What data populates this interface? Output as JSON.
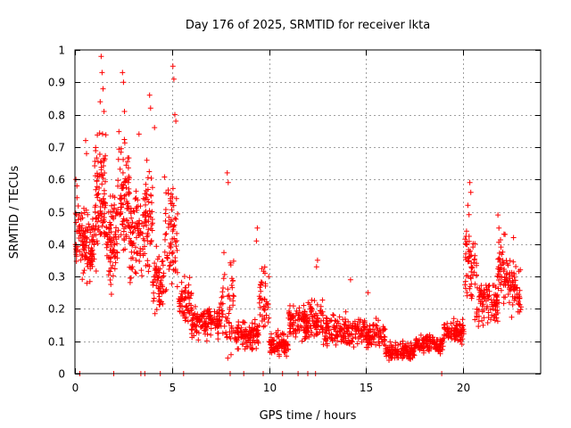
{
  "chart_data": {
    "type": "scatter",
    "title": "Day 176 of 2025, SRMTID for receiver lkta",
    "xlabel": "GPS time / hours",
    "ylabel": "SRMTID / TECUs",
    "xlim": [
      0,
      24
    ],
    "ylim": [
      0,
      1
    ],
    "xticks": [
      0,
      5,
      10,
      15,
      20
    ],
    "xtick_labels": [
      "0",
      "5",
      "10",
      "15",
      "20"
    ],
    "yticks": [
      0,
      0.1,
      0.2,
      0.3,
      0.4,
      0.5,
      0.6,
      0.7,
      0.8,
      0.9,
      1
    ],
    "ytick_labels": [
      "0",
      "0.1",
      "0.2",
      "0.3",
      "0.4",
      "0.5",
      "0.6",
      "0.7",
      "0.8",
      "0.9",
      "1"
    ],
    "grid": true,
    "legend": "none",
    "marker": "+",
    "color": "#ff0000",
    "series": [
      {
        "name": "SRMTID",
        "profile": [
          {
            "x_range": [
              0.0,
              0.5
            ],
            "y_center": 0.42,
            "y_spread": 0.16,
            "count": 60
          },
          {
            "x_range": [
              0.5,
              1.0
            ],
            "y_center": 0.4,
            "y_spread": 0.14,
            "count": 70
          },
          {
            "x_range": [
              1.0,
              1.6
            ],
            "y_center": 0.55,
            "y_spread": 0.25,
            "count": 90
          },
          {
            "x_range": [
              1.6,
              2.2
            ],
            "y_center": 0.42,
            "y_spread": 0.2,
            "count": 80
          },
          {
            "x_range": [
              2.2,
              2.8
            ],
            "y_center": 0.55,
            "y_spread": 0.22,
            "count": 80
          },
          {
            "x_range": [
              2.8,
              3.5
            ],
            "y_center": 0.4,
            "y_spread": 0.2,
            "count": 80
          },
          {
            "x_range": [
              3.5,
              4.0
            ],
            "y_center": 0.48,
            "y_spread": 0.22,
            "count": 60
          },
          {
            "x_range": [
              4.0,
              4.6
            ],
            "y_center": 0.28,
            "y_spread": 0.14,
            "count": 60
          },
          {
            "x_range": [
              4.6,
              5.3
            ],
            "y_center": 0.45,
            "y_spread": 0.3,
            "count": 70
          },
          {
            "x_range": [
              5.3,
              6.0
            ],
            "y_center": 0.22,
            "y_spread": 0.1,
            "count": 60
          },
          {
            "x_range": [
              6.0,
              7.5
            ],
            "y_center": 0.16,
            "y_spread": 0.07,
            "count": 130
          },
          {
            "x_range": [
              7.5,
              8.2
            ],
            "y_center": 0.22,
            "y_spread": 0.2,
            "count": 55
          },
          {
            "x_range": [
              8.2,
              9.5
            ],
            "y_center": 0.12,
            "y_spread": 0.06,
            "count": 110
          },
          {
            "x_range": [
              9.5,
              10.0
            ],
            "y_center": 0.22,
            "y_spread": 0.14,
            "count": 40
          },
          {
            "x_range": [
              10.0,
              11.0
            ],
            "y_center": 0.09,
            "y_spread": 0.05,
            "count": 90
          },
          {
            "x_range": [
              11.0,
              12.0
            ],
            "y_center": 0.15,
            "y_spread": 0.08,
            "count": 90
          },
          {
            "x_range": [
              12.0,
              12.8
            ],
            "y_center": 0.16,
            "y_spread": 0.1,
            "count": 70
          },
          {
            "x_range": [
              12.8,
              15.0
            ],
            "y_center": 0.13,
            "y_spread": 0.07,
            "count": 170
          },
          {
            "x_range": [
              15.0,
              16.0
            ],
            "y_center": 0.12,
            "y_spread": 0.06,
            "count": 80
          },
          {
            "x_range": [
              16.0,
              17.5
            ],
            "y_center": 0.07,
            "y_spread": 0.04,
            "count": 130
          },
          {
            "x_range": [
              17.5,
              19.0
            ],
            "y_center": 0.09,
            "y_spread": 0.04,
            "count": 120
          },
          {
            "x_range": [
              19.0,
              20.1
            ],
            "y_center": 0.13,
            "y_spread": 0.05,
            "count": 90
          },
          {
            "x_range": [
              20.1,
              20.7
            ],
            "y_center": 0.34,
            "y_spread": 0.2,
            "count": 60
          },
          {
            "x_range": [
              20.7,
              21.8
            ],
            "y_center": 0.22,
            "y_spread": 0.1,
            "count": 100
          },
          {
            "x_range": [
              21.8,
              22.3
            ],
            "y_center": 0.32,
            "y_spread": 0.14,
            "count": 50
          },
          {
            "x_range": [
              22.3,
              23.0
            ],
            "y_center": 0.26,
            "y_spread": 0.12,
            "count": 60
          }
        ],
        "highlights": [
          {
            "x": 1.35,
            "y": 0.98
          },
          {
            "x": 1.4,
            "y": 0.93
          },
          {
            "x": 1.45,
            "y": 0.88
          },
          {
            "x": 1.3,
            "y": 0.84
          },
          {
            "x": 1.5,
            "y": 0.81
          },
          {
            "x": 2.45,
            "y": 0.93
          },
          {
            "x": 2.5,
            "y": 0.9
          },
          {
            "x": 2.55,
            "y": 0.81
          },
          {
            "x": 3.85,
            "y": 0.86
          },
          {
            "x": 3.9,
            "y": 0.82
          },
          {
            "x": 5.05,
            "y": 0.95
          },
          {
            "x": 5.1,
            "y": 0.91
          },
          {
            "x": 5.15,
            "y": 0.8
          },
          {
            "x": 5.2,
            "y": 0.78
          },
          {
            "x": 0.55,
            "y": 0.72
          },
          {
            "x": 0.6,
            "y": 0.68
          },
          {
            "x": 3.3,
            "y": 0.74
          },
          {
            "x": 4.1,
            "y": 0.76
          },
          {
            "x": 7.85,
            "y": 0.62
          },
          {
            "x": 7.9,
            "y": 0.59
          },
          {
            "x": 9.4,
            "y": 0.45
          },
          {
            "x": 9.35,
            "y": 0.41
          },
          {
            "x": 12.5,
            "y": 0.35
          },
          {
            "x": 12.45,
            "y": 0.33
          },
          {
            "x": 20.35,
            "y": 0.59
          },
          {
            "x": 20.4,
            "y": 0.56
          },
          {
            "x": 20.25,
            "y": 0.52
          },
          {
            "x": 21.8,
            "y": 0.49
          },
          {
            "x": 21.85,
            "y": 0.45
          },
          {
            "x": 22.6,
            "y": 0.42
          },
          {
            "x": 0.05,
            "y": 0.6
          },
          {
            "x": 0.1,
            "y": 0.58
          },
          {
            "x": 14.2,
            "y": 0.29
          },
          {
            "x": 15.1,
            "y": 0.25
          }
        ],
        "zero_points": [
          0.25,
          2.0,
          3.4,
          3.6,
          4.4,
          5.6,
          8.0,
          8.7,
          9.7,
          10.7,
          11.5,
          12.0,
          12.4,
          18.9
        ]
      }
    ]
  }
}
